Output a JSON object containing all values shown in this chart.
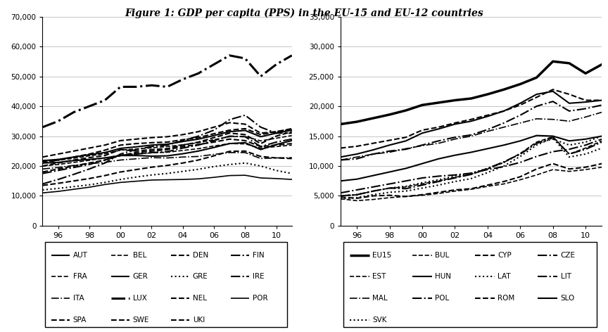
{
  "title": "Figure 1: GDP per capita (PPS) in the EU-15 and EU-12 countries",
  "years": [
    1995,
    1996,
    1997,
    1998,
    1999,
    2000,
    2001,
    2002,
    2003,
    2004,
    2005,
    2006,
    2007,
    2008,
    2009,
    2010,
    2011
  ],
  "eu15_data": {
    "AUT": [
      21800,
      22200,
      23000,
      23800,
      24500,
      25900,
      26400,
      27000,
      27300,
      28200,
      29000,
      30200,
      31500,
      31900,
      29800,
      31000,
      32000
    ],
    "BEL": [
      21500,
      21900,
      22600,
      23400,
      24100,
      25300,
      25700,
      26100,
      26500,
      27100,
      27800,
      28800,
      29800,
      29900,
      28400,
      29300,
      30200
    ],
    "DEN": [
      23000,
      24000,
      25000,
      26000,
      27000,
      28500,
      29000,
      29500,
      29800,
      30500,
      31500,
      33000,
      34500,
      34000,
      31000,
      31500,
      32200
    ],
    "FIN": [
      17500,
      18500,
      19500,
      20500,
      22000,
      23500,
      24000,
      24500,
      24800,
      26000,
      27000,
      28500,
      30000,
      29800,
      26500,
      28000,
      29000
    ],
    "FRA": [
      20000,
      20500,
      21200,
      21900,
      22700,
      23600,
      24000,
      24400,
      24600,
      25200,
      25800,
      26700,
      27500,
      27400,
      26000,
      26500,
      27000
    ],
    "GER": [
      21000,
      21200,
      21800,
      22200,
      22700,
      23500,
      23500,
      23300,
      23400,
      24100,
      25000,
      26200,
      27500,
      27800,
      25500,
      27200,
      28500
    ],
    "GRE": [
      12000,
      12500,
      13100,
      13700,
      14500,
      15500,
      16300,
      17000,
      17500,
      18200,
      18900,
      19800,
      20500,
      21000,
      20000,
      18500,
      17500
    ],
    "IRE": [
      14000,
      15500,
      17200,
      19000,
      21000,
      24000,
      25500,
      26500,
      27000,
      28500,
      30000,
      32000,
      35500,
      37000,
      33000,
      31000,
      31000
    ],
    "ITA": [
      19000,
      19500,
      20200,
      20800,
      21200,
      22000,
      22400,
      22800,
      22700,
      23000,
      23200,
      23900,
      24500,
      24500,
      22500,
      22700,
      22800
    ],
    "LUX": [
      33000,
      35000,
      38000,
      40000,
      42000,
      46500,
      46500,
      47000,
      46500,
      49000,
      51000,
      54000,
      57000,
      56000,
      50000,
      54000,
      57000
    ],
    "NEL": [
      21000,
      22000,
      23000,
      24000,
      25300,
      27000,
      27500,
      27800,
      28000,
      28800,
      29500,
      30800,
      32000,
      32500,
      30500,
      31500,
      32500
    ],
    "POR": [
      11000,
      11500,
      12200,
      12900,
      13800,
      14500,
      14900,
      15300,
      15400,
      15500,
      15700,
      16200,
      16800,
      16900,
      16000,
      15800,
      15500
    ],
    "SPA": [
      13500,
      14200,
      15000,
      15800,
      16800,
      18000,
      18800,
      19600,
      20200,
      21000,
      22000,
      23400,
      24900,
      25000,
      23200,
      22700,
      22500
    ],
    "SWE": [
      20000,
      21000,
      22000,
      22800,
      23500,
      25500,
      25000,
      25500,
      25800,
      27000,
      28000,
      29500,
      31000,
      30500,
      27500,
      30000,
      31500
    ],
    "UKI": [
      18000,
      19000,
      20000,
      21000,
      22000,
      23500,
      24500,
      25000,
      25500,
      26500,
      27200,
      28000,
      29000,
      28500,
      26500,
      27000,
      27500
    ]
  },
  "eu12_data": {
    "EU15": [
      17000,
      17400,
      18000,
      18600,
      19300,
      20200,
      20600,
      21000,
      21300,
      22000,
      22800,
      23700,
      24800,
      27500,
      27200,
      25500,
      27000
    ],
    "BUL": [
      4500,
      4200,
      4400,
      4700,
      4900,
      5100,
      5400,
      5800,
      6100,
      6600,
      7000,
      7700,
      8500,
      9400,
      9100,
      9400,
      9800
    ],
    "CYP": [
      13000,
      13300,
      13800,
      14300,
      14800,
      16000,
      16500,
      17200,
      17800,
      18500,
      19200,
      20200,
      21500,
      22800,
      22000,
      21000,
      21000
    ],
    "CZE": [
      11000,
      11200,
      12000,
      12500,
      12800,
      13500,
      14200,
      14800,
      15200,
      16100,
      17200,
      18500,
      20000,
      20800,
      19200,
      19600,
      20200
    ],
    "EST": [
      5000,
      5200,
      5800,
      6300,
      6500,
      7000,
      7500,
      8100,
      8600,
      9500,
      10600,
      12100,
      14000,
      14900,
      12000,
      13000,
      14200
    ],
    "HUN": [
      7500,
      7800,
      8400,
      9000,
      9600,
      10400,
      11200,
      11800,
      12300,
      12900,
      13500,
      14200,
      15100,
      15000,
      14200,
      14500,
      15000
    ],
    "LAT": [
      4500,
      4700,
      5200,
      5600,
      5800,
      6300,
      6800,
      7400,
      7900,
      8900,
      10000,
      11600,
      13500,
      14700,
      11500,
      12000,
      13000
    ],
    "LIT": [
      5000,
      5200,
      5800,
      6300,
      6200,
      6800,
      7400,
      8000,
      8600,
      9600,
      10700,
      12000,
      13800,
      14800,
      12000,
      12800,
      14000
    ],
    "MAL": [
      11000,
      11500,
      12000,
      12300,
      12900,
      13400,
      13800,
      14500,
      15000,
      15800,
      16500,
      17200,
      17900,
      17800,
      17500,
      18200,
      19000
    ],
    "POL": [
      5500,
      6000,
      6500,
      7000,
      7500,
      8000,
      8300,
      8500,
      8800,
      9400,
      9900,
      10600,
      11600,
      12400,
      12800,
      13500,
      14500
    ],
    "ROM": [
      4800,
      4600,
      5000,
      5100,
      4900,
      5200,
      5600,
      6000,
      6200,
      6800,
      7400,
      8200,
      9500,
      10400,
      9500,
      9800,
      10400
    ],
    "SLO": [
      11500,
      12000,
      12700,
      13500,
      14200,
      15500,
      16200,
      17000,
      17500,
      18300,
      19200,
      20500,
      22000,
      22500,
      20500,
      20700,
      21000
    ],
    "SVK": [
      5000,
      5200,
      5800,
      6300,
      6600,
      7200,
      7700,
      8300,
      8800,
      9600,
      10600,
      12000,
      13800,
      14500,
      13500,
      14000,
      15000
    ]
  },
  "eu15_linestyles": {
    "AUT": [
      "-",
      1.5
    ],
    "BEL": [
      "--",
      1.2
    ],
    "DEN": [
      "--",
      1.5
    ],
    "FIN": [
      "-.",
      1.5
    ],
    "FRA": [
      "--",
      1.2
    ],
    "GER": [
      "-",
      1.5
    ],
    "GRE": [
      ":",
      1.5
    ],
    "IRE": [
      "-.",
      1.5
    ],
    "ITA": [
      "-.",
      1.2
    ],
    "LUX": [
      "-.",
      2.2
    ],
    "NEL": [
      "--",
      1.5
    ],
    "POR": [
      "-",
      1.2
    ],
    "SPA": [
      "--",
      1.5
    ],
    "SWE": [
      "--",
      1.5
    ],
    "UKI": [
      "--",
      1.5
    ]
  },
  "eu12_linestyles": {
    "EU15": [
      "-",
      2.5
    ],
    "BUL": [
      "--",
      1.2
    ],
    "CYP": [
      "--",
      1.5
    ],
    "CZE": [
      "-.",
      1.5
    ],
    "EST": [
      "--",
      1.2
    ],
    "HUN": [
      "-",
      1.5
    ],
    "LAT": [
      ":",
      1.5
    ],
    "LIT": [
      "-.",
      1.5
    ],
    "MAL": [
      "-.",
      1.2
    ],
    "POL": [
      "-.",
      1.5
    ],
    "ROM": [
      "--",
      1.5
    ],
    "SLO": [
      "-",
      1.5
    ],
    "SVK": [
      ":",
      1.5
    ]
  },
  "legend1_rows": [
    [
      "AUT",
      "BEL",
      "DEN",
      "FIN"
    ],
    [
      "FRA",
      "GER",
      "GRE",
      "IRE"
    ],
    [
      "ITA",
      "LUX",
      "NEL",
      "POR"
    ],
    [
      "SPA",
      "SWE",
      "UKI",
      ""
    ]
  ],
  "legend2_rows": [
    [
      "EU15",
      "BUL",
      "CYP",
      "CZE"
    ],
    [
      "EST",
      "HUN",
      "LAT",
      "LIT"
    ],
    [
      "MAL",
      "POL",
      "ROM",
      "SLO"
    ],
    [
      "SVK",
      "",
      "",
      ""
    ]
  ]
}
